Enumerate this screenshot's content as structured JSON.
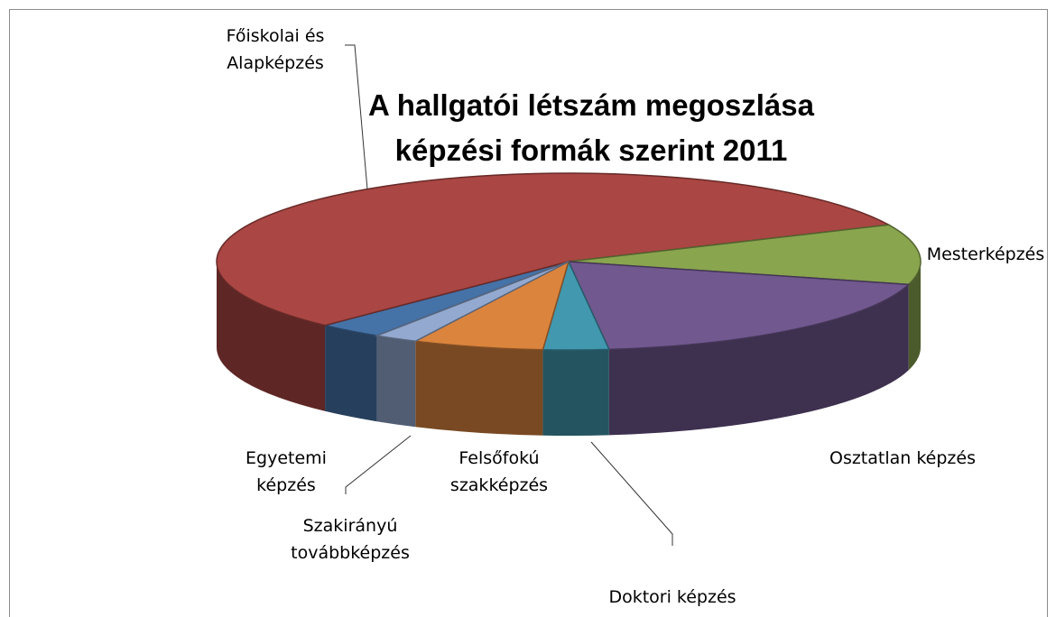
{
  "chart_data": {
    "type": "pie3d",
    "title": "A hallgatói létszám megoszlása képzési formák szerint 2011",
    "categories": [
      "Egyetemi képzés",
      "Főiskolai és Alapképzés",
      "Mesterképzés",
      "Osztatlan képzés",
      "Doktori képzés",
      "Felsőfokú szakképzés",
      "Szakirányú továbbképzés"
    ],
    "values": [
      3,
      56,
      11,
      19,
      3,
      6,
      2
    ],
    "colors": [
      "#4572a7",
      "#aa4643",
      "#89a54e",
      "#71588f",
      "#4198af",
      "#db843d",
      "#93a9cf"
    ]
  }
}
